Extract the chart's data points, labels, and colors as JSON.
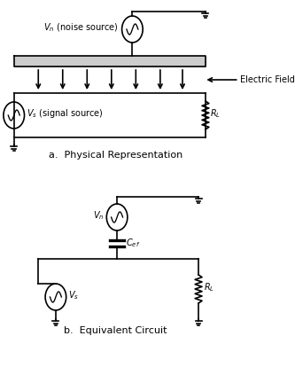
{
  "bg_color": "#ffffff",
  "line_color": "#000000",
  "text_color": "#000000",
  "title_a": "a.  Physical Representation",
  "title_b": "b.  Equivalent Circuit",
  "electric_field_label": "Electric Field",
  "fig_width": 3.33,
  "fig_height": 4.23,
  "dpi": 100
}
